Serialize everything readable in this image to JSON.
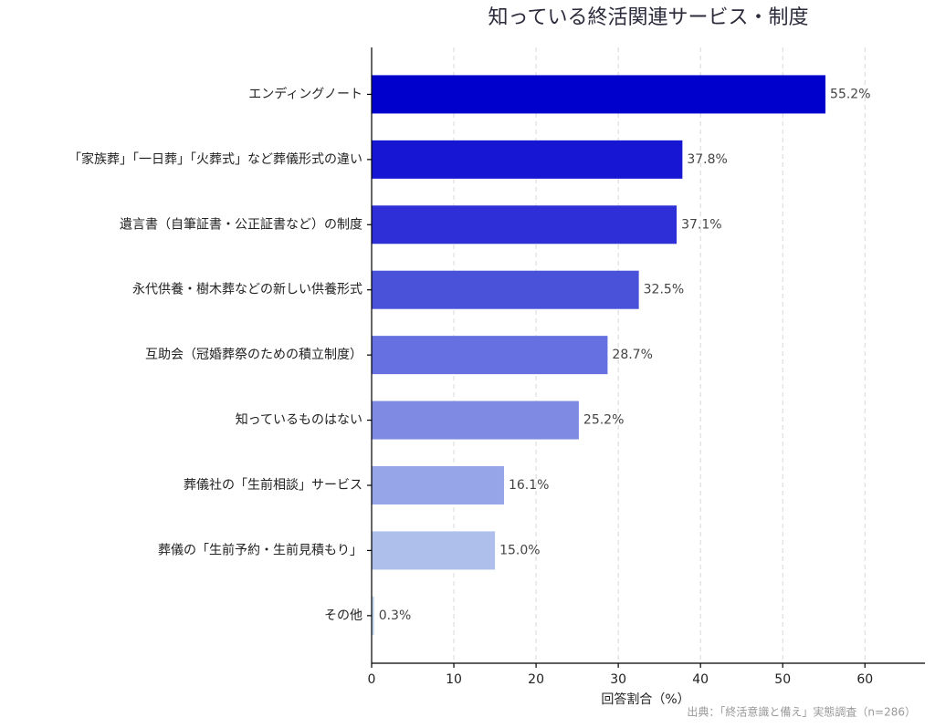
{
  "chart_data": {
    "type": "barh",
    "title": "知っている終活関連サービス・制度",
    "x_label": "回答割合（%）",
    "source": "出典：「終活意識と備え」実態調査（n=286）",
    "categories": [
      "エンディングノート",
      "「家族葬」「一日葬」「火葬式」など葬儀形式の違い",
      "遺言書（自筆証書・公正証書など）の制度",
      "永代供養・樹木葬などの新しい供養形式",
      "互助会（冠婚葬祭のための積立制度）",
      "知っているものはない",
      "葬儀社の「生前相談」サービス",
      "葬儀の「生前予約・生前見積もり」",
      "その他"
    ],
    "values": [
      55.2,
      37.8,
      37.1,
      32.5,
      28.7,
      25.2,
      16.1,
      15.0,
      0.3
    ],
    "value_labels": [
      "55.2%",
      "37.8%",
      "37.1%",
      "32.5%",
      "28.7%",
      "25.2%",
      "16.1%",
      "15.0%",
      "0.3%"
    ],
    "colors": [
      "#0000cd",
      "#1717d3",
      "#2e2fd6",
      "#4a52d9",
      "#6670e0",
      "#7f8ae3",
      "#96a4e8",
      "#aebfec",
      "#c2d6f0"
    ],
    "xlim": [
      0,
      67.3
    ],
    "xticks": [
      0,
      10,
      20,
      30,
      40,
      50,
      60
    ],
    "grid": true
  }
}
